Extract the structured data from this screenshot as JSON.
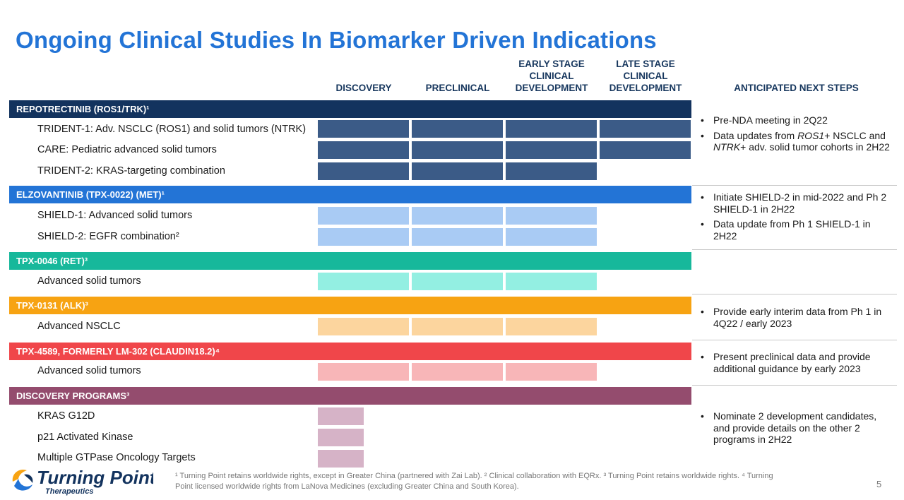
{
  "title": "Ongoing Clinical Studies In Biomarker Driven Indications",
  "columns": {
    "discovery": "DISCOVERY",
    "preclinical": "PRECLINICAL",
    "early": "EARLY STAGE\nCLINICAL\nDEVELOPMENT",
    "late": "LATE STAGE\nCLINICAL\nDEVELOPMENT",
    "next": "ANTICIPATED NEXT STEPS"
  },
  "colors": {
    "band_repotrectinib": "#13335e",
    "band_elzovantinib": "#2374d6",
    "band_tpx0046": "#17b89b",
    "band_tpx0131": "#f7a312",
    "band_tpx4589": "#f0464a",
    "band_discovery": "#944c6e",
    "bar_repotrectinib": "#3b5b87",
    "bar_elzovantinib": "#a9cbf4",
    "bar_tpx0046": "#93efe2",
    "bar_tpx0131": "#fcd59e",
    "bar_tpx4589": "#f8b6b8",
    "bar_discovery": "#d6b3c7"
  },
  "programs": {
    "repotrectinib": {
      "name": "REPOTRECTINIB (ROS1/TRK)¹",
      "studies": [
        "TRIDENT-1: Adv. NSCLC (ROS1) and solid tumors (NTRK)",
        "CARE: Pediatric advanced solid tumors",
        "TRIDENT-2: KRAS-targeting combination"
      ],
      "stages_reached": [
        4,
        4,
        3
      ]
    },
    "elzovantinib": {
      "name": "ELZOVANTINIB (TPX-0022) (MET)¹",
      "studies": [
        "SHIELD-1: Advanced solid tumors",
        "SHIELD-2: EGFR combination²"
      ],
      "stages_reached": [
        3,
        3
      ]
    },
    "tpx0046": {
      "name": "TPX-0046 (RET)³",
      "studies": [
        "Advanced solid tumors"
      ],
      "stages_reached": [
        3
      ]
    },
    "tpx0131": {
      "name": "TPX-0131 (ALK)³",
      "studies": [
        "Advanced NSCLC"
      ],
      "stages_reached": [
        3
      ]
    },
    "tpx4589": {
      "name": "TPX-4589, FORMERLY LM-302 (CLAUDIN18.2)⁴",
      "studies": [
        "Advanced solid tumors"
      ],
      "stages_reached": [
        3
      ]
    },
    "discovery": {
      "name": "DISCOVERY PROGRAMS³",
      "studies": [
        "KRAS G12D",
        "p21 Activated Kinase",
        "Multiple GTPase Oncology Targets"
      ],
      "stages_reached": [
        0.5,
        0.5,
        0.5
      ]
    }
  },
  "next_steps": {
    "repotrectinib": [
      [
        "Pre-NDA meeting in 2Q22"
      ],
      [
        "Data updates from ",
        "ROS1",
        "+ NSCLC and ",
        "NTRK",
        "+ adv. solid tumor cohorts in 2H22"
      ]
    ],
    "elzovantinib": [
      "Initiate SHIELD-2 in mid-2022 and Ph 2 SHIELD-1 in 2H22",
      "Data update from Ph 1 SHIELD-1 in 2H22"
    ],
    "tpx0131": [
      "Provide early interim data from Ph 1 in 4Q22 / early 2023"
    ],
    "tpx4589": [
      "Present preclinical data and provide additional guidance by early 2023"
    ],
    "discovery": [
      "Nominate 2 development candidates, and provide details on the other 2 programs in 2H22"
    ]
  },
  "footnote": "¹ Turning Point retains worldwide rights, except in Greater China (partnered with Zai Lab). ² Clinical collaboration with EQRx. ³ Turning Point retains worldwide rights. ⁴ Turning Point licensed worldwide rights from LaNova Medicines (excluding Greater China and South Korea).",
  "logo": {
    "name": "Turning Point",
    "sub": "Therapeutics"
  },
  "page_number": "5"
}
